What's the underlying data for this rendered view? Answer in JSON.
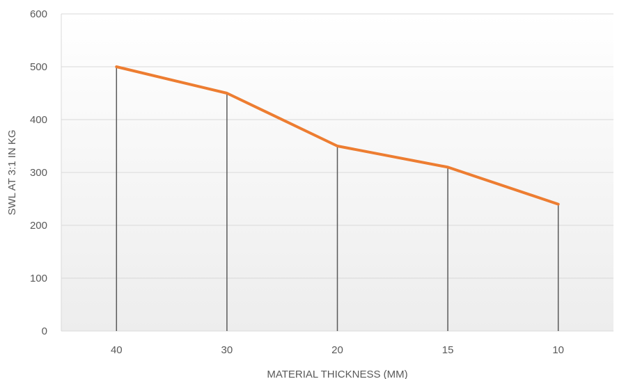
{
  "chart_data": {
    "type": "line",
    "title": "",
    "xlabel": "MATERIAL THICKNESS (MM)",
    "ylabel": "SWL AT 3:1 IN KG",
    "categories": [
      "40",
      "30",
      "20",
      "15",
      "10"
    ],
    "series": [
      {
        "values": [
          500,
          450,
          350,
          310,
          240
        ]
      }
    ],
    "ylim": [
      0,
      600
    ],
    "yticks": [
      "0",
      "100",
      "200",
      "300",
      "400",
      "500",
      "600"
    ],
    "drop_lines": true,
    "grid": true,
    "legend": "none",
    "colors": {
      "line": "#ED7D31",
      "drop_line": "#595959",
      "grid": "#D9D9D9",
      "plot_bg_top": "#FFFFFF",
      "plot_bg_bottom": "#EDEDED"
    }
  }
}
